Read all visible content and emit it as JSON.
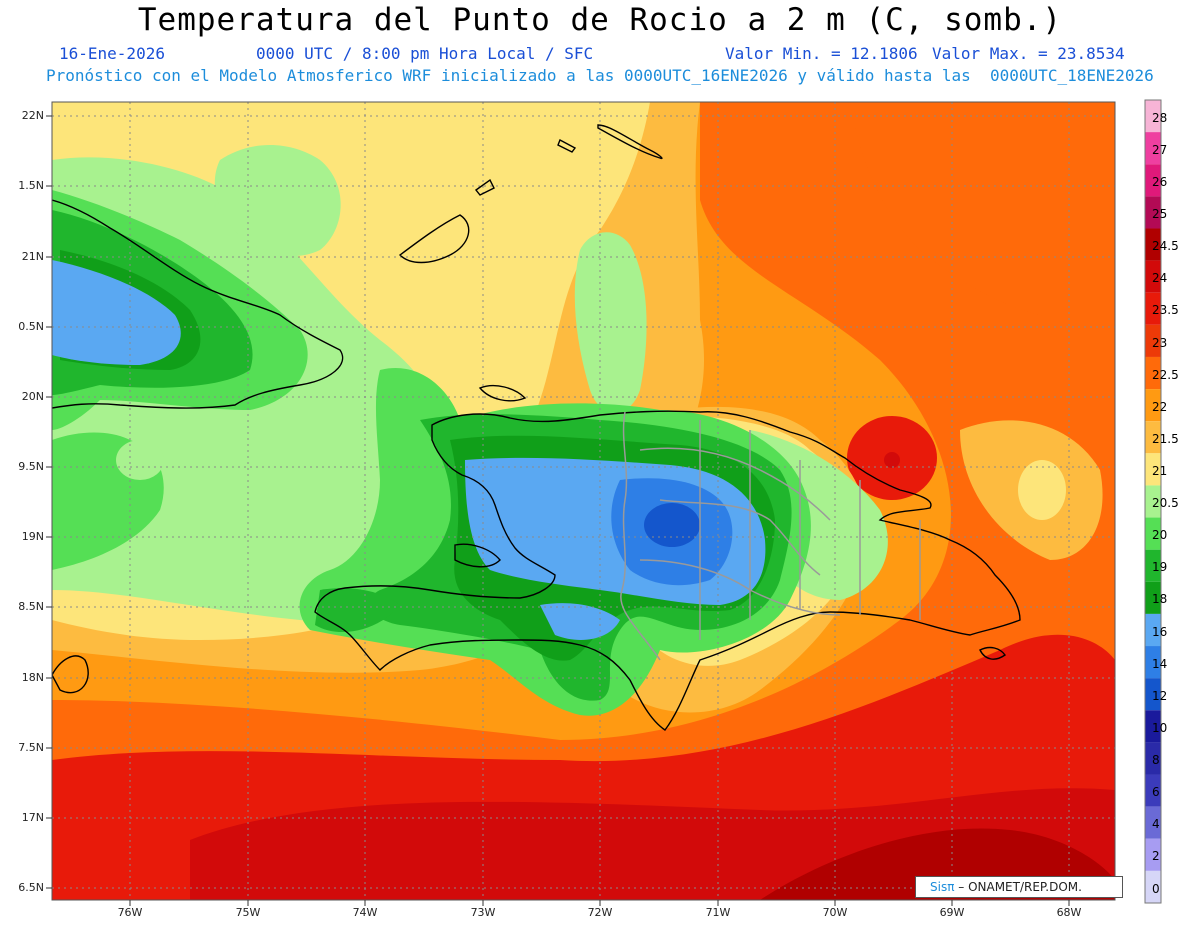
{
  "header": {
    "title": "Temperatura del Punto de Rocio a 2 m (C, somb.)",
    "date": "16-Ene-2026",
    "time": "0000 UTC / 8:00 pm Hora Local / SFC",
    "min": "Valor Min. = 12.1806",
    "max": "Valor Max. = 23.8534",
    "forecast": "Pronóstico con el Modelo Atmosferico WRF inicializado a las 0000UTC_16ENE2026 y válido hasta las  0000UTC_18ENE2026"
  },
  "axes": {
    "lat_labels": [
      "22N",
      "1.5N",
      "21N",
      "0.5N",
      "20N",
      "9.5N",
      "19N",
      "8.5N",
      "18N",
      "7.5N",
      "17N",
      "6.5N"
    ],
    "lon_labels": [
      "76W",
      "75W",
      "74W",
      "73W",
      "72W",
      "71W",
      "70W",
      "69W",
      "68W"
    ]
  },
  "legend": {
    "labels": [
      "28",
      "27",
      "26",
      "25",
      "24.5",
      "24",
      "23.5",
      "23",
      "22.5",
      "22",
      "21.5",
      "21",
      "20.5",
      "20",
      "19",
      "18",
      "16",
      "14",
      "12",
      "10",
      "8",
      "6",
      "4",
      "2",
      "0"
    ],
    "colors": [
      "#f7b4d6",
      "#ef3fa0",
      "#e0197a",
      "#b30a55",
      "#b00000",
      "#d20a0a",
      "#e81a0a",
      "#ed3a08",
      "#ff6a0a",
      "#ff9a12",
      "#fdbb40",
      "#fde57a",
      "#a8f28f",
      "#55df55",
      "#20b62d",
      "#109f19",
      "#5aa8f2",
      "#2e7fe6",
      "#1456cc",
      "#1a1a9c",
      "#2a2aa8",
      "#3b3bbb",
      "#6a6ad6",
      "#a79cf2",
      "#d6d6f7"
    ]
  },
  "credit": {
    "brand": "Sisπ",
    "text": " – ONAMET/REP.DOM."
  }
}
